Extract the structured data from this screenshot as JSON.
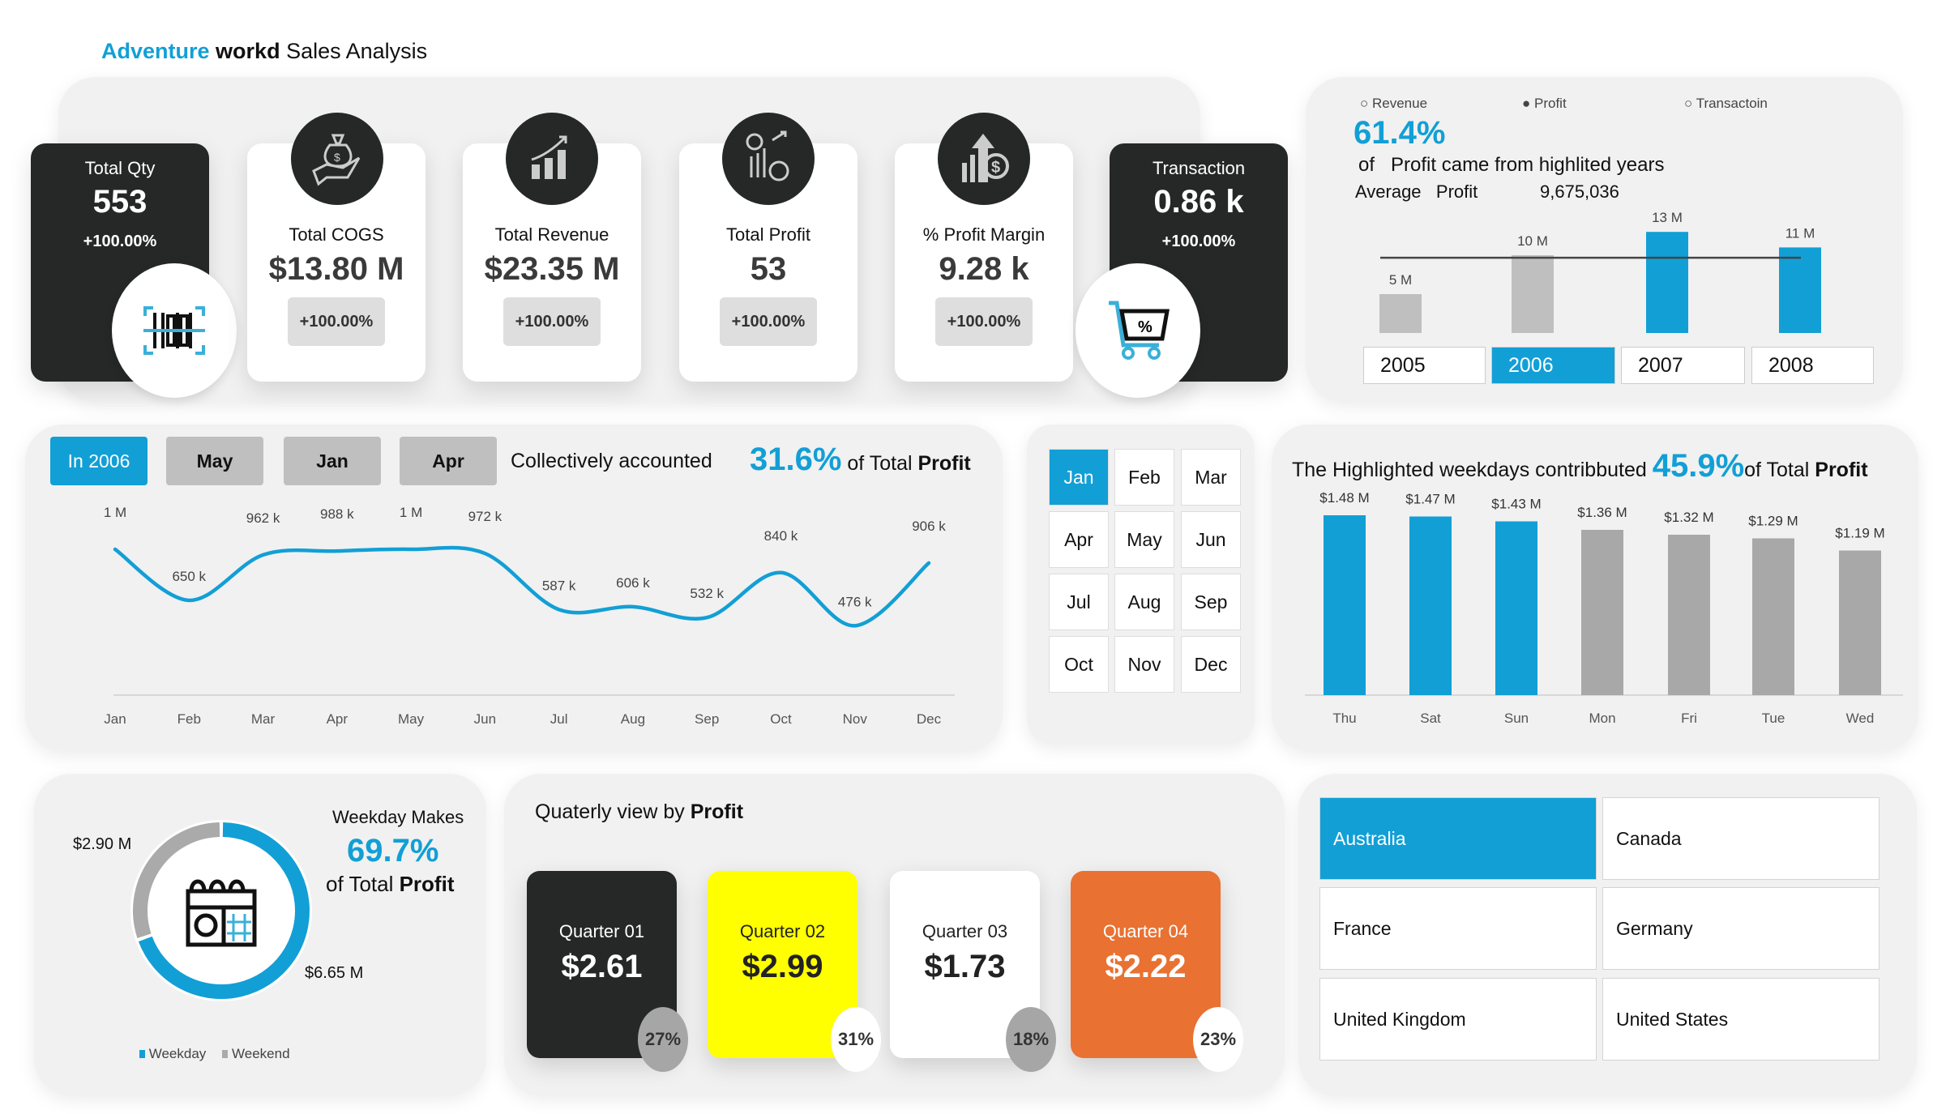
{
  "header": {
    "title_part1": "Adventure",
    "title_part2": "workd",
    "title_part3": "Sales Analysis"
  },
  "colors": {
    "accent": "#129fd6",
    "dark": "#262828",
    "gray": "#aaaaaa",
    "q2": "#ffff00",
    "q4": "#e97132"
  },
  "kpis": {
    "total_qty": {
      "label": "Total Qty",
      "value": "553",
      "change": "+100.00%",
      "icon": "barcode-scan-icon"
    },
    "total_cogs": {
      "label": "Total COGS",
      "value": "$13.80 M",
      "change": "+100.00%",
      "icon": "money-bag-hand-icon"
    },
    "total_revenue": {
      "label": "Total Revenue",
      "value": "$23.35 M",
      "change": "+100.00%",
      "icon": "growth-bars-icon"
    },
    "total_profit": {
      "label": "Total Profit",
      "value": "53",
      "change": "+100.00%",
      "icon": "percent-chart-icon"
    },
    "profit_margin": {
      "label": "% Profit Margin",
      "value": "9.28 k",
      "change": "+100.00%",
      "icon": "dollar-arrow-up-icon"
    },
    "transaction": {
      "label": "Transaction",
      "value": "0.86 k",
      "change": "+100.00%",
      "icon": "shopping-cart-icon"
    }
  },
  "year_panel": {
    "radio": [
      {
        "label": "Revenue",
        "selected": false
      },
      {
        "label": "Profit",
        "selected": true
      },
      {
        "label": "Transactoin",
        "selected": false
      }
    ],
    "pct": "61.4%",
    "of": "of",
    "pct_text": "Profit came from highlited years",
    "avg_label": "Average",
    "avg_measure": "Profit",
    "avg_value": "9,675,036",
    "years": [
      {
        "label": "2005",
        "selected": false
      },
      {
        "label": "2006",
        "selected": true
      },
      {
        "label": "2007",
        "selected": false
      },
      {
        "label": "2008",
        "selected": false
      }
    ]
  },
  "month_filter": {
    "in_year": "In 2006",
    "selected_months": [
      "May",
      "Jan",
      "Apr"
    ],
    "text": "Collectively accounted",
    "pct": "31.6%",
    "of_total": "of Total",
    "measure": "Profit"
  },
  "month_slicer": [
    {
      "label": "Jan",
      "selected": true
    },
    {
      "label": "Feb"
    },
    {
      "label": "Mar"
    },
    {
      "label": "Apr"
    },
    {
      "label": "May"
    },
    {
      "label": "Jun"
    },
    {
      "label": "Jul"
    },
    {
      "label": "Aug"
    },
    {
      "label": "Sep"
    },
    {
      "label": "Oct"
    },
    {
      "label": "Nov"
    },
    {
      "label": "Dec"
    }
  ],
  "weekday_panel": {
    "text": "The Highlighted weekdays contribbuted",
    "pct": "45.9%",
    "of_total": "of Total",
    "measure": "Profit"
  },
  "donut_panel": {
    "title": "Weekday Makes",
    "pct": "69.7%",
    "of_total": "of Total",
    "measure": "Profit",
    "weekend_label": "$2.90 M",
    "weekday_label": "$6.65 M",
    "legend": [
      "Weekday",
      "Weekend"
    ]
  },
  "quarter_panel": {
    "title": "Quaterly view by",
    "measure": "Profit",
    "quarters": [
      {
        "label": "Quarter 01",
        "value": "$2.61",
        "pct": "27%"
      },
      {
        "label": "Quarter 02",
        "value": "$2.99",
        "pct": "31%"
      },
      {
        "label": "Quarter 03",
        "value": "$1.73",
        "pct": "18%"
      },
      {
        "label": "Quarter 04",
        "value": "$2.22",
        "pct": "23%"
      }
    ]
  },
  "countries": [
    {
      "label": "Australia",
      "selected": true
    },
    {
      "label": "Canada"
    },
    {
      "label": "France"
    },
    {
      "label": "Germany"
    },
    {
      "label": "United Kingdom"
    },
    {
      "label": "United States"
    }
  ],
  "chart_data": [
    {
      "type": "bar",
      "categories": [
        "2005",
        "2006",
        "2007",
        "2008"
      ],
      "values": [
        5,
        10,
        13,
        11
      ],
      "labels": [
        "5 M",
        "10 M",
        "13 M",
        "11 M"
      ],
      "highlighted": [
        false,
        false,
        true,
        true
      ],
      "average": 9.675036,
      "unit": "M"
    },
    {
      "type": "line",
      "categories": [
        "Jan",
        "Feb",
        "Mar",
        "Apr",
        "May",
        "Jun",
        "Jul",
        "Aug",
        "Sep",
        "Oct",
        "Nov",
        "Dec"
      ],
      "values": [
        1000000,
        650000,
        962000,
        988000,
        1000000,
        972000,
        587000,
        606000,
        532000,
        840000,
        476000,
        906000
      ],
      "labels": [
        "1 M",
        "650 k",
        "962 k",
        "988 k",
        "1 M",
        "972 k",
        "587 k",
        "606 k",
        "532 k",
        "840 k",
        "476 k",
        "906 k"
      ]
    },
    {
      "type": "bar",
      "categories": [
        "Thu",
        "Sat",
        "Sun",
        "Mon",
        "Fri",
        "Tue",
        "Wed"
      ],
      "values": [
        1.48,
        1.47,
        1.43,
        1.36,
        1.32,
        1.29,
        1.19
      ],
      "labels": [
        "$1.48 M",
        "$1.47 M",
        "$1.43 M",
        "$1.36 M",
        "$1.32 M",
        "$1.29 M",
        "$1.19 M"
      ],
      "highlighted": [
        true,
        true,
        true,
        false,
        false,
        false,
        false
      ]
    },
    {
      "type": "pie",
      "categories": [
        "Weekday",
        "Weekend"
      ],
      "values": [
        6.65,
        2.9
      ]
    }
  ]
}
